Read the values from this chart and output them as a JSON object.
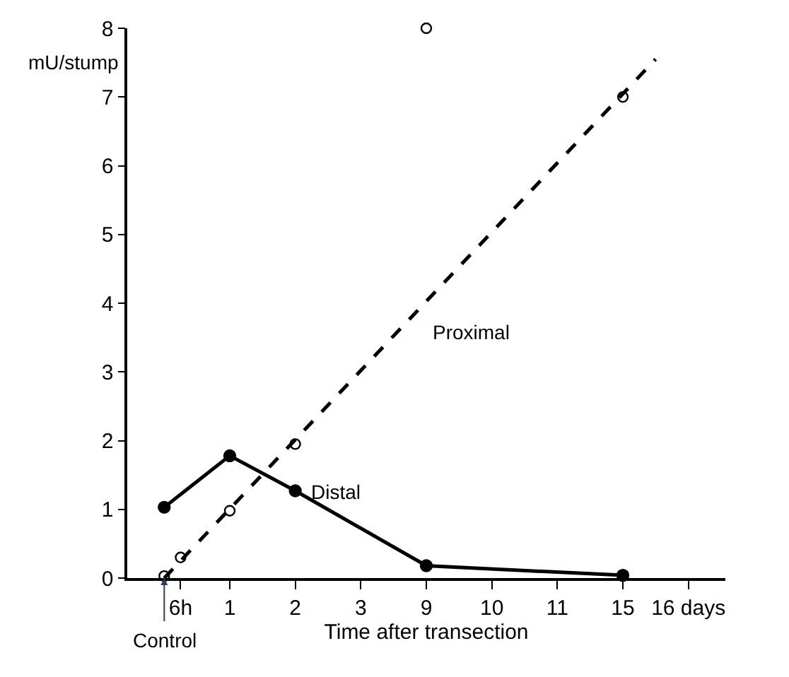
{
  "chart_data": {
    "type": "line",
    "xlabel": "Time after transection",
    "ylabel": "mU/stump",
    "categories": [
      null,
      "6h",
      null,
      null,
      "1",
      null,
      null,
      null,
      "2",
      null,
      null,
      null,
      "3",
      null,
      null,
      null,
      "9",
      null,
      null,
      null,
      "10",
      null,
      null,
      null,
      "11",
      null,
      null,
      null,
      "15",
      null,
      null,
      null,
      "16 days"
    ],
    "ylim": [
      0,
      8
    ],
    "yticks": [
      0,
      1,
      2,
      3,
      4,
      5,
      6,
      7,
      8
    ],
    "series": [
      {
        "type": "scatter",
        "color": "#000000",
        "marker": "circle-open",
        "values": [
          0.03,
          0.3,
          null,
          null,
          0.98,
          null,
          null,
          null,
          1.95,
          null,
          null,
          null,
          null,
          null,
          null,
          null,
          8.0,
          null,
          null,
          null,
          null,
          null,
          null,
          null,
          null,
          null,
          null,
          null,
          7.0,
          null,
          null,
          null,
          null
        ]
      },
      {
        "name": "Proximal",
        "color": "#000000",
        "marker": "none",
        "line_style": "dashed",
        "values": [
          0,
          null,
          null,
          null,
          null,
          null,
          null,
          null,
          null,
          null,
          null,
          null,
          null,
          null,
          null,
          null,
          null,
          null,
          null,
          null,
          null,
          null,
          null,
          null,
          null,
          null,
          null,
          null,
          null,
          null,
          7.55,
          null,
          null
        ]
      },
      {
        "name": "Distal",
        "color": "#000000",
        "marker": "circle",
        "line_style": "solid",
        "values": [
          1.03,
          null,
          null,
          null,
          1.78,
          null,
          null,
          null,
          1.27,
          null,
          null,
          null,
          null,
          null,
          null,
          null,
          0.18,
          null,
          null,
          null,
          null,
          null,
          null,
          null,
          null,
          null,
          null,
          null,
          0.04,
          null,
          null,
          null,
          null
        ]
      }
    ],
    "annotations": [
      {
        "text": "Control",
        "y": 0
      }
    ]
  }
}
